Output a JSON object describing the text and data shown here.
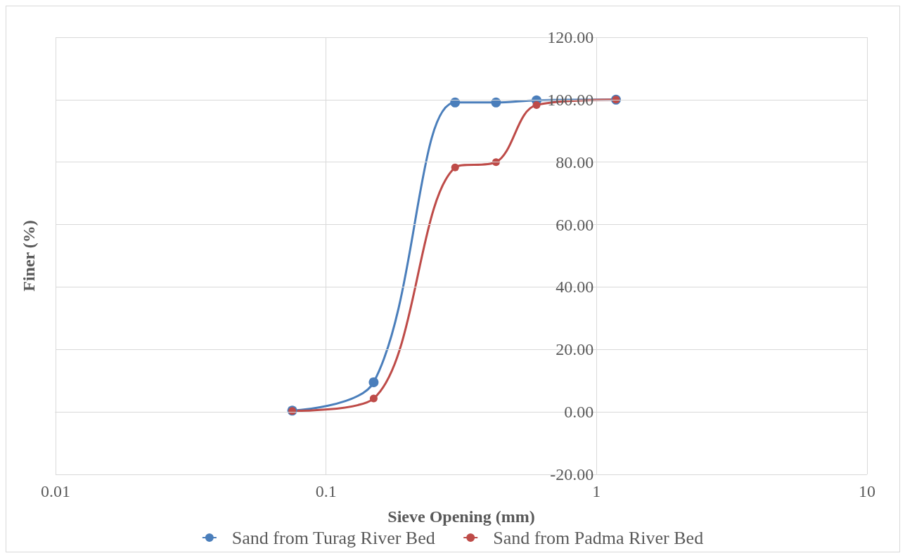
{
  "chart_data": {
    "type": "line",
    "xlabel": "Sieve Opening (mm)",
    "ylabel": "Finer (%)",
    "log": "x",
    "xlim": [
      0.01,
      10
    ],
    "xticks": [
      0.01,
      0.1,
      1,
      10
    ],
    "ylim": [
      -20,
      120
    ],
    "yticks": [
      {
        "value": -20,
        "label": "-20.00"
      },
      {
        "value": 0,
        "label": "0.00"
      },
      {
        "value": 20,
        "label": "20.00"
      },
      {
        "value": 40,
        "label": "40.00"
      },
      {
        "value": 60,
        "label": "60.00"
      },
      {
        "value": 80,
        "label": "80.00"
      },
      {
        "value": 100,
        "label": "100.00"
      },
      {
        "value": 120,
        "label": "120.00"
      }
    ],
    "x": [
      0.075,
      0.15,
      0.3,
      0.425,
      0.6,
      1.18
    ],
    "series": [
      {
        "name": "Sand from Turag River Bed",
        "color": "#4a7ebb",
        "values": [
          0.4,
          9.5,
          99.1,
          99.1,
          99.8,
          100
        ]
      },
      {
        "name": "Sand from Padma River Bed",
        "color": "#be4b48",
        "values": [
          0.3,
          4.3,
          78.3,
          80.0,
          98.3,
          100
        ]
      }
    ],
    "grid": true,
    "legend": "bottom",
    "marker": "circle",
    "line_style": "solid"
  }
}
